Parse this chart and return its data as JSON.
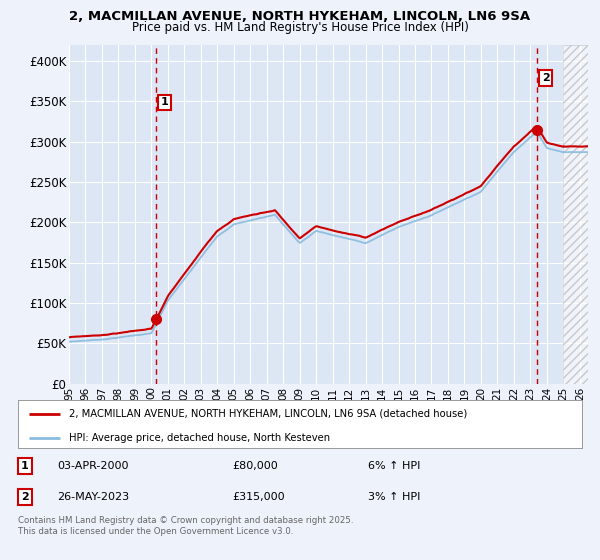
{
  "title_line1": "2, MACMILLAN AVENUE, NORTH HYKEHAM, LINCOLN, LN6 9SA",
  "title_line2": "Price paid vs. HM Land Registry's House Price Index (HPI)",
  "background_color": "#eef2fb",
  "plot_bg_color": "#dce6f5",
  "grid_color": "#c8d4ec",
  "line1_color": "#cc0000",
  "line2_color": "#88bbdd",
  "ylim": [
    0,
    420000
  ],
  "yticks": [
    0,
    50000,
    100000,
    150000,
    200000,
    250000,
    300000,
    350000,
    400000
  ],
  "ytick_labels": [
    "£0",
    "£50K",
    "£100K",
    "£150K",
    "£200K",
    "£250K",
    "£300K",
    "£350K",
    "£400K"
  ],
  "sale1_year": 2000,
  "sale1_month": 0.25,
  "sale1_price": 80000,
  "sale2_year": 2023,
  "sale2_month": 0.4,
  "sale2_price": 315000,
  "legend_line1": "2, MACMILLAN AVENUE, NORTH HYKEHAM, LINCOLN, LN6 9SA (detached house)",
  "legend_line2": "HPI: Average price, detached house, North Kesteven",
  "note1_label": "1",
  "note1_date": "03-APR-2000",
  "note1_price": "£80,000",
  "note1_hpi": "6% ↑ HPI",
  "note2_label": "2",
  "note2_date": "26-MAY-2023",
  "note2_price": "£315,000",
  "note2_hpi": "3% ↑ HPI",
  "footer": "Contains HM Land Registry data © Crown copyright and database right 2025.\nThis data is licensed under the Open Government Licence v3.0.",
  "xlim_start": 1995,
  "xlim_end": 2026.5,
  "hatch_start": 2025.0
}
